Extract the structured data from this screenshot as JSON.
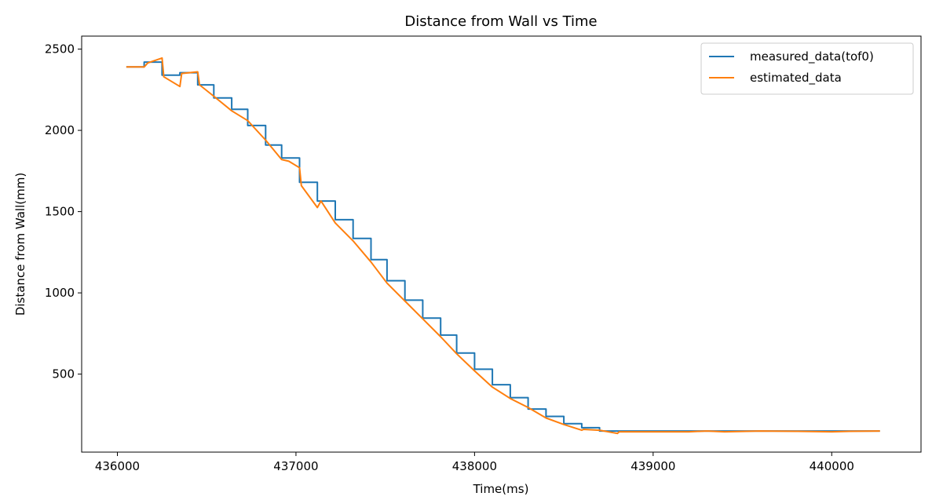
{
  "chart_data": {
    "type": "line",
    "title": "Distance from Wall vs Time",
    "xlabel": "Time(ms)",
    "ylabel": "Distance from Wall(mm)",
    "xlim": [
      435800,
      440500
    ],
    "ylim": [
      20,
      2580
    ],
    "x_ticks": [
      436000,
      437000,
      438000,
      439000,
      440000
    ],
    "x_tick_labels": [
      "436000",
      "437000",
      "438000",
      "439000",
      "440000"
    ],
    "y_ticks": [
      500,
      1000,
      1500,
      2000,
      2500
    ],
    "y_tick_labels": [
      "500",
      "1000",
      "1500",
      "2000",
      "2500"
    ],
    "grid": false,
    "legend_position": "top-right",
    "series": [
      {
        "name": "measured_data(tof0)",
        "color": "#1f77b4",
        "step": true,
        "x": [
          436050,
          436150,
          436250,
          436350,
          436450,
          436540,
          436640,
          436730,
          436830,
          436920,
          437020,
          437120,
          437220,
          437320,
          437420,
          437510,
          437610,
          437710,
          437810,
          437900,
          438000,
          438100,
          438200,
          438300,
          438400,
          438500,
          438600,
          438700,
          438800,
          439000,
          439200,
          439400,
          439600,
          439800,
          440000,
          440270
        ],
        "y": [
          2390,
          2420,
          2340,
          2355,
          2280,
          2200,
          2130,
          2030,
          1910,
          1830,
          1680,
          1565,
          1450,
          1335,
          1205,
          1075,
          955,
          845,
          740,
          630,
          530,
          435,
          355,
          285,
          240,
          195,
          170,
          150,
          150,
          150,
          150,
          150,
          150,
          150,
          150,
          150
        ]
      },
      {
        "name": "estimated_data",
        "color": "#ff7f0e",
        "step": false,
        "x": [
          436050,
          436150,
          436170,
          436250,
          436260,
          436350,
          436360,
          436450,
          436460,
          436540,
          436640,
          436730,
          436830,
          436920,
          436960,
          437020,
          437030,
          437120,
          437140,
          437220,
          437320,
          437420,
          437510,
          437610,
          437710,
          437810,
          437900,
          438000,
          438100,
          438200,
          438300,
          438400,
          438500,
          438600,
          438610,
          438700,
          438800,
          438810,
          439000,
          439200,
          439300,
          439400,
          439600,
          439800,
          440000,
          440100,
          440270
        ],
        "y": [
          2390,
          2390,
          2415,
          2445,
          2330,
          2270,
          2350,
          2360,
          2280,
          2210,
          2120,
          2060,
          1940,
          1820,
          1810,
          1770,
          1660,
          1525,
          1565,
          1430,
          1320,
          1190,
          1060,
          950,
          840,
          730,
          625,
          520,
          420,
          350,
          295,
          230,
          190,
          155,
          160,
          155,
          135,
          145,
          145,
          145,
          150,
          145,
          150,
          148,
          145,
          148,
          150
        ]
      }
    ]
  }
}
